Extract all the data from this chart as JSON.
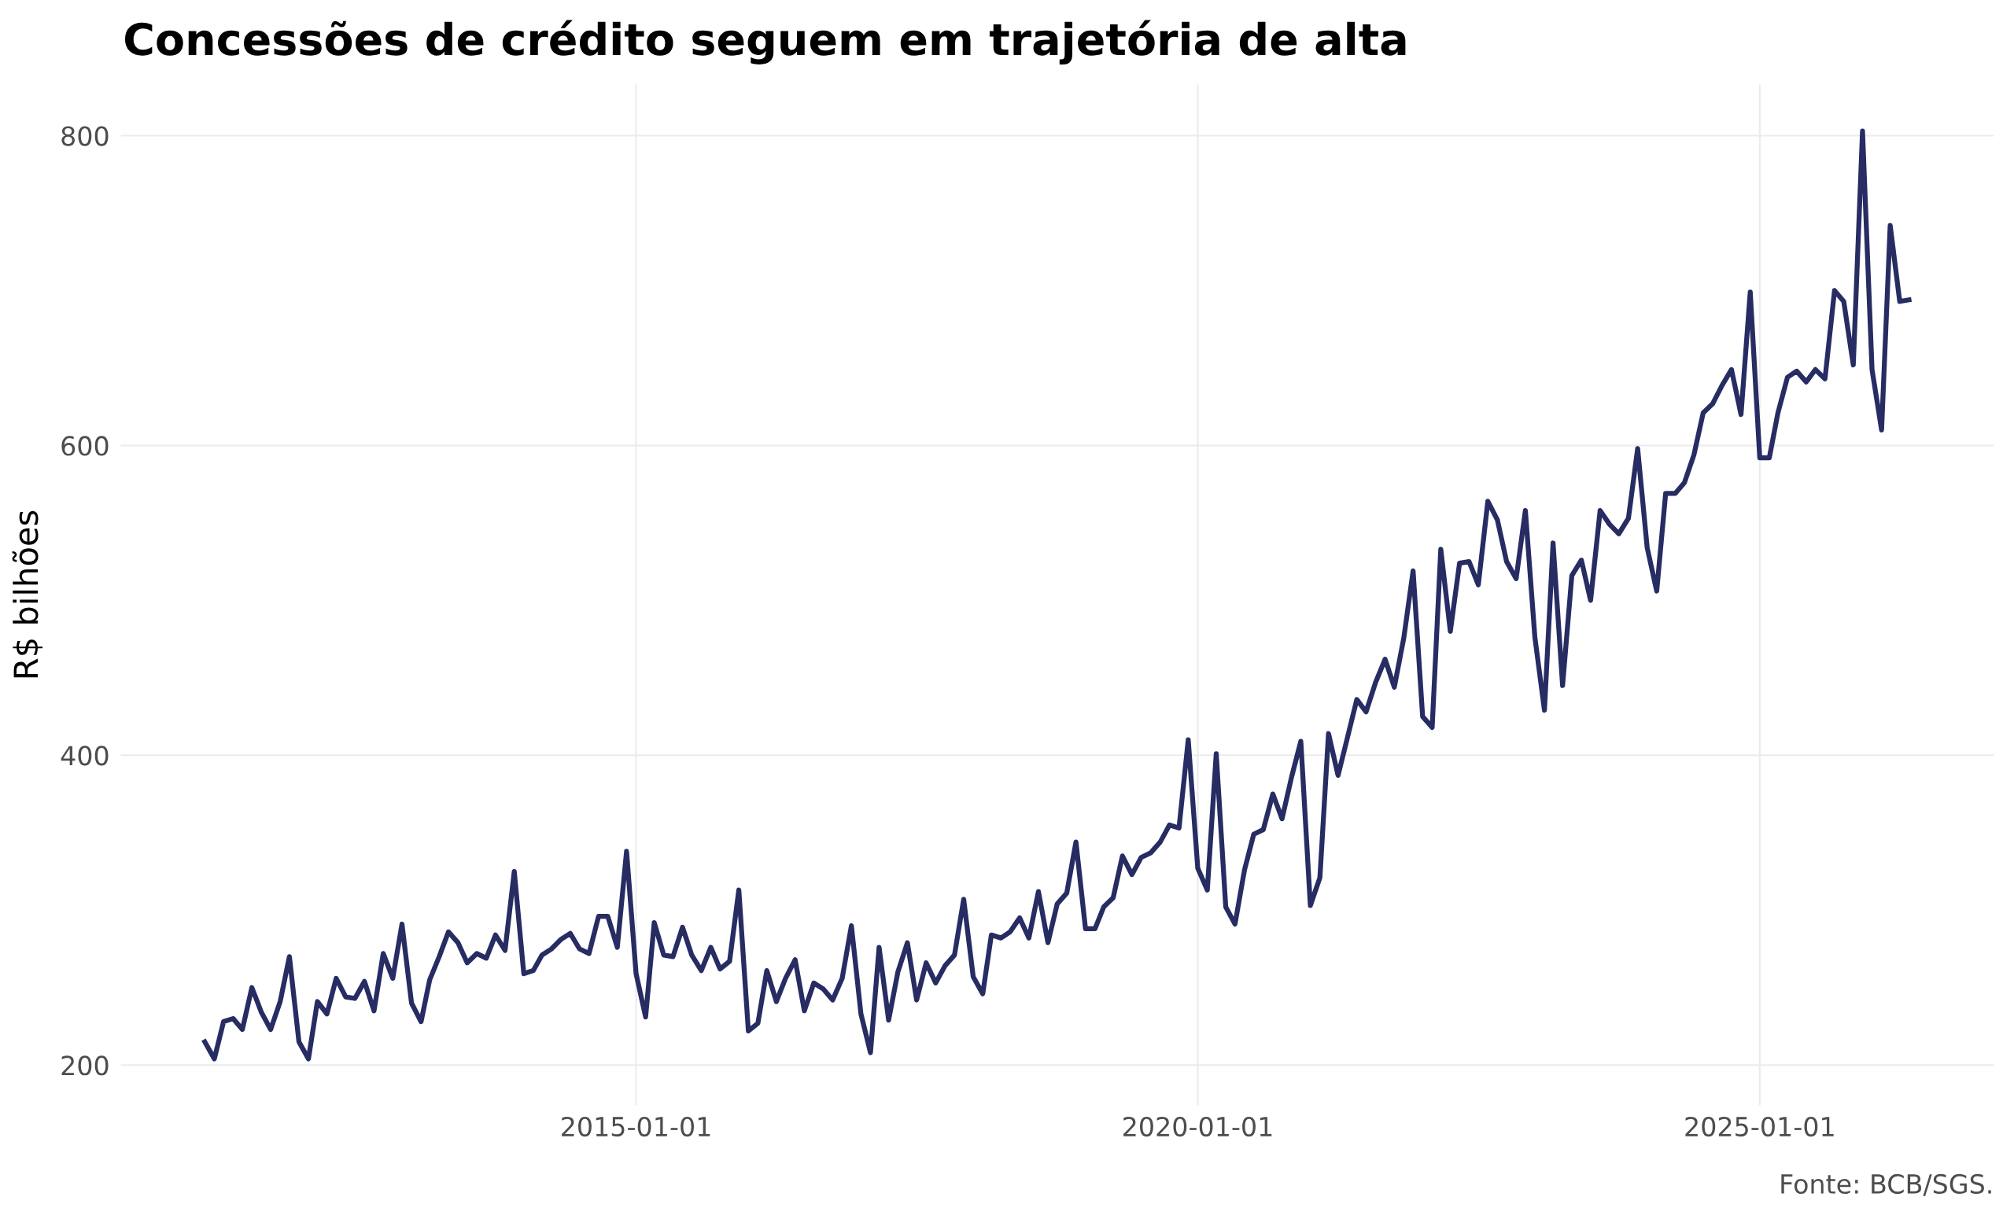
{
  "chart_data": {
    "type": "line",
    "title": "Concessões de crédito seguem em trajetória de alta",
    "ylabel": "R$ bilhões",
    "annotations": [
      "Fonte: BCB/SGS."
    ],
    "x": [
      "2011-03",
      "2011-04",
      "2011-05",
      "2011-06",
      "2011-07",
      "2011-08",
      "2011-09",
      "2011-10",
      "2011-11",
      "2011-12",
      "2012-01",
      "2012-02",
      "2012-03",
      "2012-04",
      "2012-05",
      "2012-06",
      "2012-07",
      "2012-08",
      "2012-09",
      "2012-10",
      "2012-11",
      "2012-12",
      "2013-01",
      "2013-02",
      "2013-03",
      "2013-04",
      "2013-05",
      "2013-06",
      "2013-07",
      "2013-08",
      "2013-09",
      "2013-10",
      "2013-11",
      "2013-12",
      "2014-01",
      "2014-02",
      "2014-03",
      "2014-04",
      "2014-05",
      "2014-06",
      "2014-07",
      "2014-08",
      "2014-09",
      "2014-10",
      "2014-11",
      "2014-12",
      "2015-01",
      "2015-02",
      "2015-03",
      "2015-04",
      "2015-05",
      "2015-06",
      "2015-07",
      "2015-08",
      "2015-09",
      "2015-10",
      "2015-11",
      "2015-12",
      "2016-01",
      "2016-02",
      "2016-03",
      "2016-04",
      "2016-05",
      "2016-06",
      "2016-07",
      "2016-08",
      "2016-09",
      "2016-10",
      "2016-11",
      "2016-12",
      "2017-01",
      "2017-02",
      "2017-03",
      "2017-04",
      "2017-05",
      "2017-06",
      "2017-07",
      "2017-08",
      "2017-09",
      "2017-10",
      "2017-11",
      "2017-12",
      "2018-01",
      "2018-02",
      "2018-03",
      "2018-04",
      "2018-05",
      "2018-06",
      "2018-07",
      "2018-08",
      "2018-09",
      "2018-10",
      "2018-11",
      "2018-12",
      "2019-01",
      "2019-02",
      "2019-03",
      "2019-04",
      "2019-05",
      "2019-06",
      "2019-07",
      "2019-08",
      "2019-09",
      "2019-10",
      "2019-11",
      "2019-12",
      "2020-01",
      "2020-02",
      "2020-03",
      "2020-04",
      "2020-05",
      "2020-06",
      "2020-07",
      "2020-08",
      "2020-09",
      "2020-10",
      "2020-11",
      "2020-12",
      "2021-01",
      "2021-02",
      "2021-03",
      "2021-04",
      "2021-05",
      "2021-06",
      "2021-07",
      "2021-08",
      "2021-09",
      "2021-10",
      "2021-11",
      "2021-12",
      "2022-01",
      "2022-02",
      "2022-03",
      "2022-04",
      "2022-05",
      "2022-06",
      "2022-07",
      "2022-08",
      "2022-09",
      "2022-10",
      "2022-11",
      "2022-12",
      "2023-01",
      "2023-02",
      "2023-03",
      "2023-04",
      "2023-05",
      "2023-06",
      "2023-07",
      "2023-08",
      "2023-09",
      "2023-10",
      "2023-11",
      "2023-12",
      "2024-01",
      "2024-02",
      "2024-03",
      "2024-04",
      "2024-05",
      "2024-06",
      "2024-07",
      "2024-08",
      "2024-09",
      "2024-10",
      "2024-11",
      "2024-12",
      "2025-01",
      "2025-02",
      "2025-03",
      "2025-04",
      "2025-05",
      "2025-06",
      "2025-07",
      "2025-08",
      "2025-09",
      "2025-10",
      "2025-11",
      "2025-12",
      "2026-01",
      "2026-02",
      "2026-03",
      "2026-04",
      "2026-05"
    ],
    "series": [
      {
        "color": "#272c63",
        "values": [
          215,
          204,
          228,
          230,
          223,
          250,
          234,
          223,
          241,
          270,
          215,
          204,
          241,
          233,
          256,
          244,
          243,
          254,
          235,
          272,
          256,
          291,
          240,
          228,
          255,
          270,
          286,
          279,
          266,
          272,
          269,
          284,
          274,
          325,
          259,
          261,
          271,
          275,
          281,
          285,
          275,
          272,
          296,
          296,
          276,
          338,
          259,
          231,
          292,
          271,
          270,
          289,
          271,
          261,
          276,
          262,
          267,
          313,
          222,
          227,
          261,
          241,
          256,
          268,
          235,
          253,
          249,
          242,
          256,
          290,
          233,
          208,
          276,
          229,
          260,
          279,
          242,
          266,
          253,
          264,
          271,
          307,
          257,
          246,
          284,
          282,
          286,
          295,
          282,
          312,
          279,
          304,
          311,
          344,
          288,
          288,
          302,
          308,
          335,
          323,
          334,
          337,
          344,
          355,
          353,
          410,
          327,
          313,
          401,
          302,
          291,
          326,
          349,
          352,
          375,
          359,
          386,
          409,
          303,
          321,
          414,
          387,
          411,
          436,
          428,
          447,
          462,
          444,
          476,
          519,
          425,
          418,
          533,
          480,
          524,
          525,
          510,
          564,
          552,
          525,
          514,
          558,
          476,
          429,
          537,
          445,
          516,
          526,
          500,
          558,
          549,
          543,
          553,
          598,
          534,
          506,
          569,
          569,
          576,
          594,
          621,
          627,
          639,
          649,
          620,
          699,
          592,
          592,
          621,
          644,
          648,
          641,
          649,
          643,
          700,
          693,
          652,
          803,
          649,
          610,
          742,
          693,
          694
        ]
      }
    ],
    "xlim": [
      "2010-06",
      "2027-02"
    ],
    "xticks": [
      "2015-01-01",
      "2020-01-01",
      "2025-01-01"
    ],
    "ylim": [
      174,
      833
    ],
    "yticks": [
      200,
      400,
      600,
      800
    ],
    "grid": true,
    "line_style": "solid",
    "marker": "none"
  }
}
